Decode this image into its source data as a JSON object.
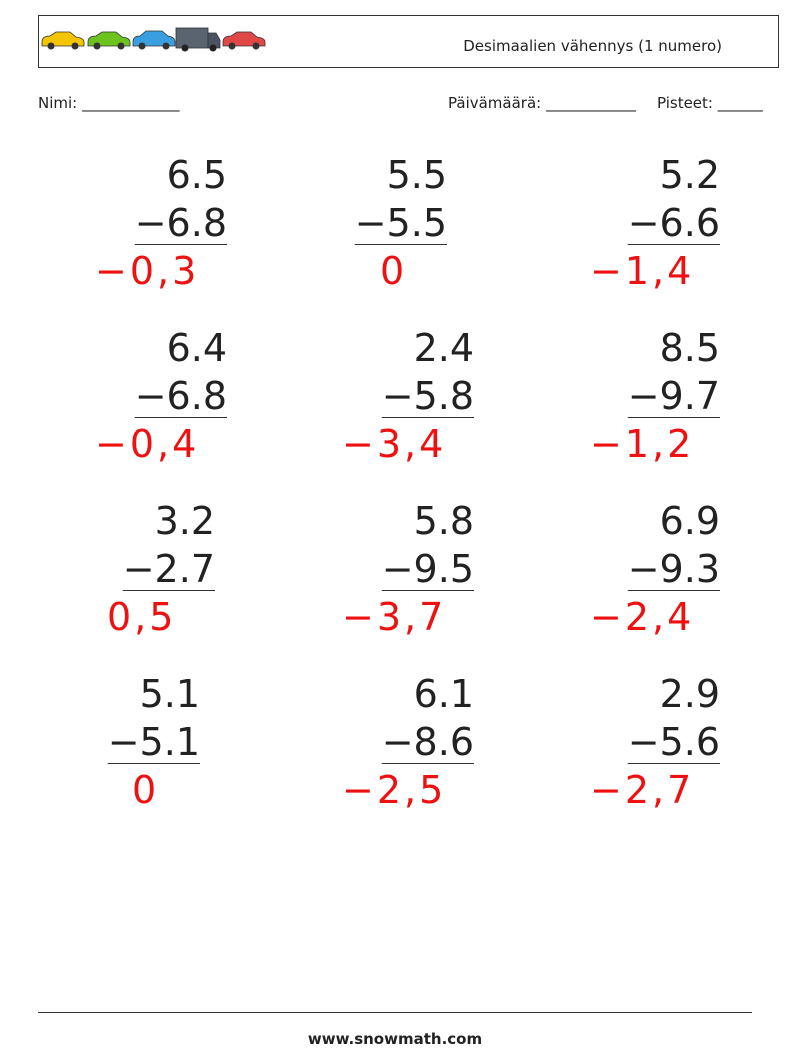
{
  "header": {
    "title": "Desimaalien vähennys (1 numero)"
  },
  "fields": {
    "name": "Nimi: _____________",
    "date": "Päivämäärä: ____________",
    "score": "Pisteet: ______"
  },
  "problems": [
    [
      {
        "top": "6.5",
        "bottom": "−6.8",
        "answer": "−0,3"
      },
      {
        "top": "5.5",
        "bottom": "−5.5",
        "answer": "0"
      },
      {
        "top": "5.2",
        "bottom": "−6.6",
        "answer": "−1,4"
      }
    ],
    [
      {
        "top": "6.4",
        "bottom": "−6.8",
        "answer": "−0,4"
      },
      {
        "top": "2.4",
        "bottom": "−5.8",
        "answer": "−3,4"
      },
      {
        "top": "8.5",
        "bottom": "−9.7",
        "answer": "−1,2"
      }
    ],
    [
      {
        "top": "3.2",
        "bottom": "−2.7",
        "answer": "0,5"
      },
      {
        "top": "5.8",
        "bottom": "−9.5",
        "answer": "−3,7"
      },
      {
        "top": "6.9",
        "bottom": "−9.3",
        "answer": "−2,4"
      }
    ],
    [
      {
        "top": "5.1",
        "bottom": "−5.1",
        "answer": "0"
      },
      {
        "top": "6.1",
        "bottom": "−8.6",
        "answer": "−2,5"
      },
      {
        "top": "2.9",
        "bottom": "−5.6",
        "answer": "−2,7"
      }
    ]
  ],
  "footer": {
    "url": "www.snowmath.com"
  }
}
